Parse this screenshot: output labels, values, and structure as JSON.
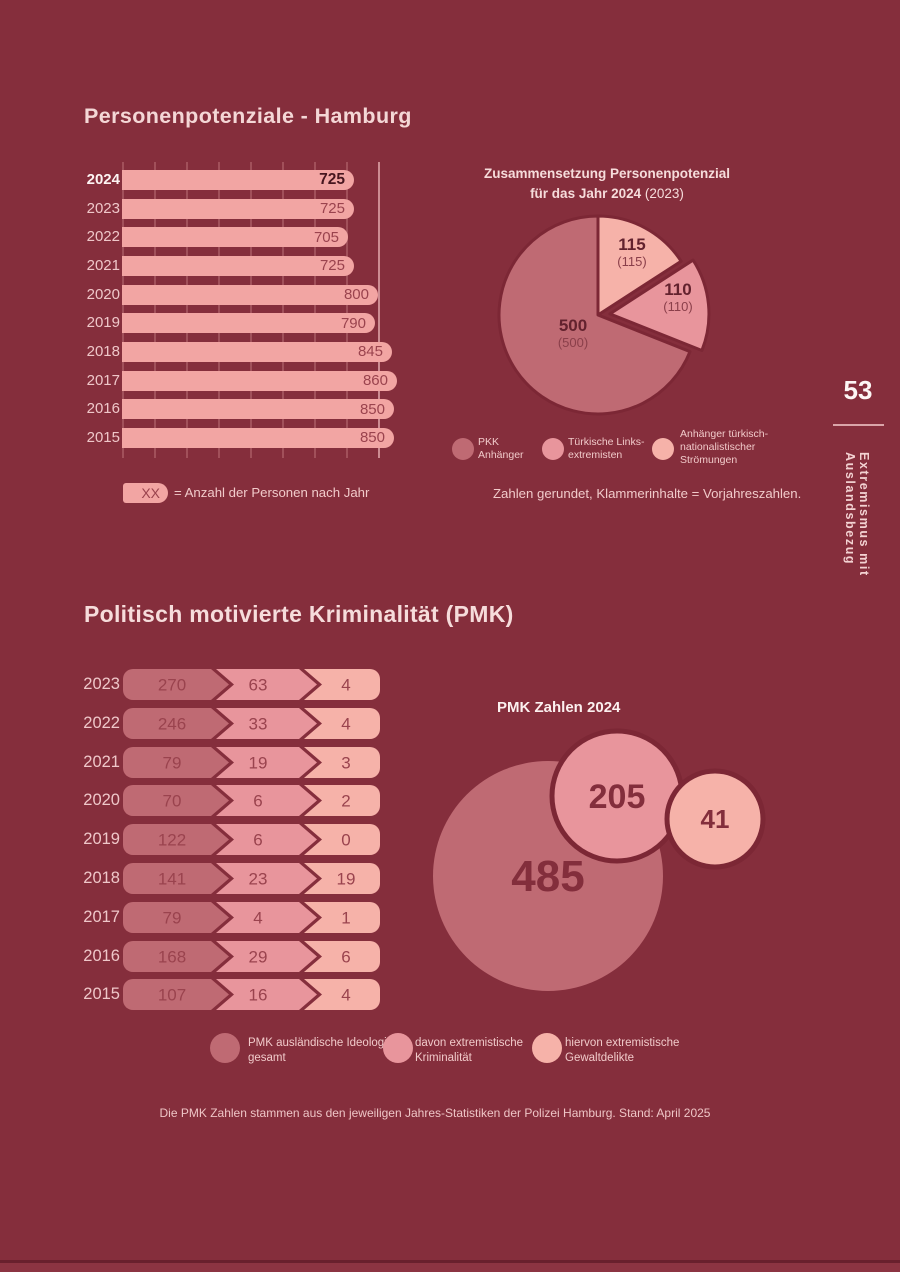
{
  "ui": {
    "pie_title": {
      "line1": "Zusammensetzung Personenpotenzial",
      "line2_bold": "für das Jahr 2024",
      "line2_normal": "(2023)"
    },
    "bar_legend": {
      "badge": "XX",
      "text": "= Anzahl der Personen nach Jahr"
    },
    "rounding_note": "Zahlen gerundet, Klammerinhalte = Vorjahreszahlen.",
    "pmk_title": "Politisch motivierte Kriminalität (PMK)",
    "pie_legend": [
      {
        "lines": [
          "PKK",
          "Anhänger"
        ],
        "color": "#bf6a73"
      },
      {
        "lines": [
          "Türkische Links-",
          "extremisten"
        ],
        "color": "#e8959c"
      },
      {
        "lines": [
          "Anhänger türkisch-",
          "nationalistischer",
          "Strömungen"
        ],
        "color": "#f6b2a9"
      }
    ],
    "pmk_legend": [
      {
        "lines": [
          "PMK ausländische Ideologie",
          "gesamt"
        ],
        "color": "#bf6a73"
      },
      {
        "lines": [
          "davon extremistische",
          "Kriminalität"
        ],
        "color": "#e8959c"
      },
      {
        "lines": [
          "hiervon extremistische",
          "Gewaltdelikte"
        ],
        "color": "#f6b2a9"
      }
    ]
  },
  "sidebar": {
    "page_number": "53",
    "chapter": "Extremismus mit Auslandsbezug"
  },
  "footer": {
    "note": "Die PMK Zahlen stammen aus den jeweiligen Jahres-Statistiken der Polizei Hamburg. Stand: April 2025"
  },
  "colors": {
    "background": "#852e3c",
    "bar_pink": "#f2a5a3",
    "rose": "#bf6a73",
    "mid_pink": "#e8959c",
    "light_pink": "#f6b2a9",
    "dark_outline": "#7c2735",
    "value_text": "#9a434e",
    "light_text": "#f1caca"
  },
  "chart_data": [
    {
      "id": "personenpotenzial-nach-jahr",
      "type": "bar",
      "orientation": "horizontal",
      "title": "Personenpotenziale - Hamburg",
      "categories": [
        "2024",
        "2023",
        "2022",
        "2021",
        "2020",
        "2019",
        "2018",
        "2017",
        "2016",
        "2015"
      ],
      "values": [
        725,
        725,
        705,
        725,
        800,
        790,
        845,
        860,
        850,
        850
      ],
      "xlim": [
        0,
        800
      ],
      "gridline_step": 100,
      "grid": true,
      "value_labels": true,
      "highlight_category": "2024"
    },
    {
      "id": "zusammensetzung-personenpotenzial-2024",
      "type": "pie",
      "title": "Zusammensetzung Personenpotenzial für das Jahr 2024 (2023)",
      "labels": [
        "Anhänger türkisch-nationalistischer Strömungen",
        "Türkische Linksextremisten",
        "PKK Anhänger"
      ],
      "values": [
        115,
        110,
        500
      ],
      "previous_year_values": [
        115,
        110,
        500
      ],
      "colors": [
        "#f6b2a9",
        "#e8959c",
        "#bf6a73"
      ],
      "exploded_index": 1,
      "start_angle_deg": 0,
      "legend_position": "bottom"
    },
    {
      "id": "pmk-nach-jahr",
      "type": "bar",
      "subtype": "chevron-stages",
      "categories": [
        "2023",
        "2022",
        "2021",
        "2020",
        "2019",
        "2018",
        "2017",
        "2016",
        "2015"
      ],
      "series": [
        {
          "name": "PMK ausländische Ideologie gesamt",
          "color": "#bf6a73",
          "values": [
            270,
            246,
            79,
            70,
            122,
            141,
            79,
            168,
            107
          ]
        },
        {
          "name": "davon extremistische Kriminalität",
          "color": "#e8959c",
          "values": [
            63,
            33,
            19,
            6,
            6,
            23,
            4,
            29,
            16
          ]
        },
        {
          "name": "hiervon extremistische Gewaltdelikte",
          "color": "#f6b2a9",
          "values": [
            4,
            4,
            3,
            2,
            0,
            19,
            1,
            6,
            4
          ]
        }
      ]
    },
    {
      "id": "pmk-zahlen-2024",
      "type": "bubble",
      "title": "PMK Zahlen 2024",
      "labels": [
        "PMK ausländische Ideologie gesamt",
        "davon extremistische Kriminalität",
        "hiervon extremistische Gewaltdelikte"
      ],
      "values": [
        485,
        205,
        41
      ],
      "colors": [
        "#bf6a73",
        "#e8959c",
        "#f6b2a9"
      ]
    }
  ]
}
